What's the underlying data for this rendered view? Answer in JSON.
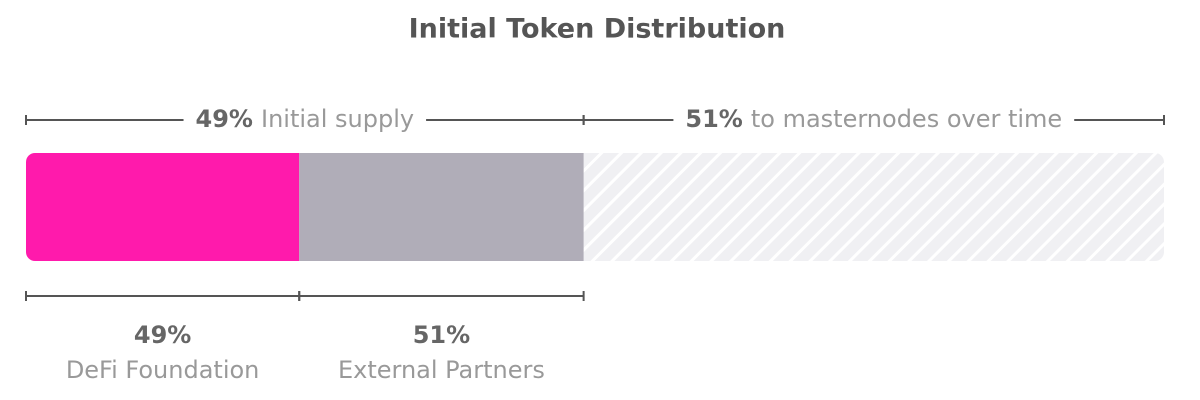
{
  "chart_data": {
    "type": "stacked-bar",
    "title": "Initial Token Distribution",
    "groups": {
      "labels": [
        "Initial supply",
        "to masternodes over time"
      ],
      "values": [
        49,
        51
      ],
      "value_labels": [
        "49%",
        "51%"
      ]
    },
    "categories": [
      "DeFi Foundation",
      "External Partners"
    ],
    "values": [
      49,
      51
    ],
    "value_labels": [
      "49%",
      "51%"
    ],
    "colors": [
      "#ff1aac",
      "#b0adb8"
    ],
    "hatch_color": "#f0f0f3"
  }
}
